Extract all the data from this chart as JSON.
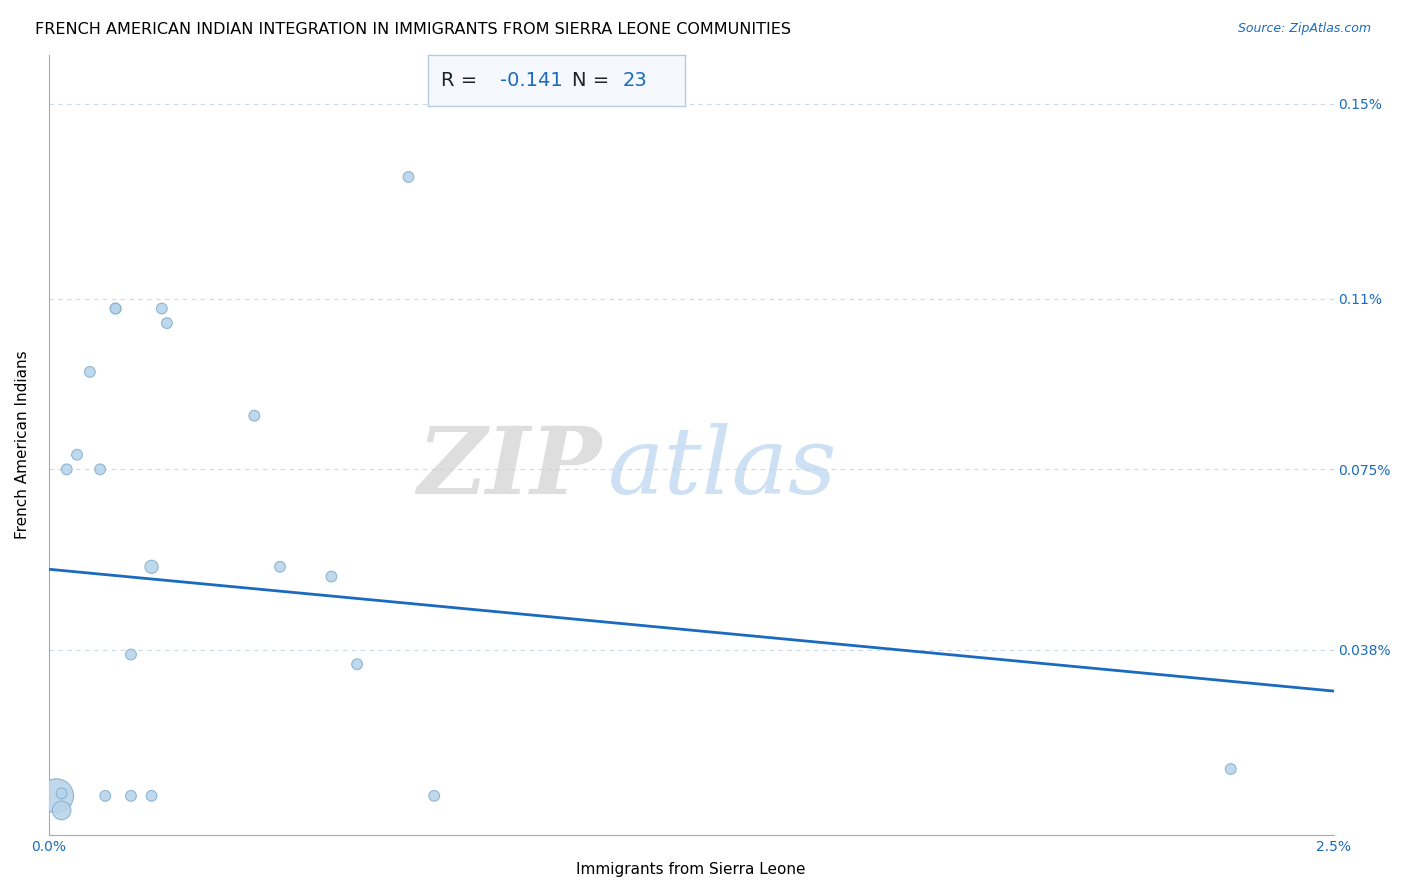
{
  "title": "FRENCH AMERICAN INDIAN INTEGRATION IN IMMIGRANTS FROM SIERRA LEONE COMMUNITIES",
  "source": "Source: ZipAtlas.com",
  "xlabel": "Immigrants from Sierra Leone",
  "ylabel": "French American Indians",
  "R": -0.141,
  "N": 23,
  "x_min": 0.0,
  "x_max": 0.025,
  "y_min": 0.0,
  "y_max": 0.0016,
  "x_ticks": [
    0.0,
    0.005,
    0.01,
    0.015,
    0.02,
    0.025
  ],
  "x_tick_labels": [
    "0.0%",
    "",
    "",
    "",
    "",
    "2.5%"
  ],
  "y_ticks": [
    0.0,
    0.00038,
    0.00075,
    0.0011,
    0.0015
  ],
  "y_tick_labels": [
    "",
    "0.038%",
    "0.075%",
    "0.11%",
    "0.15%"
  ],
  "watermark_zip": "ZIP",
  "watermark_atlas": "atlas",
  "scatter_x": [
    0.00015,
    0.00025,
    0.00025,
    0.00035,
    0.00055,
    0.0008,
    0.001,
    0.0011,
    0.0013,
    0.0013,
    0.0016,
    0.0016,
    0.002,
    0.002,
    0.0022,
    0.0023,
    0.004,
    0.0045,
    0.0055,
    0.006,
    0.007,
    0.0075,
    0.023
  ],
  "scatter_y": [
    8e-05,
    5e-05,
    8.5e-05,
    0.00075,
    0.00078,
    0.00095,
    0.00075,
    8e-05,
    0.00108,
    0.00108,
    8e-05,
    0.00037,
    0.00055,
    8e-05,
    0.00108,
    0.00105,
    0.00086,
    0.00055,
    0.00053,
    0.00035,
    0.00135,
    8e-05,
    0.000135
  ],
  "scatter_sizes": [
    600,
    180,
    60,
    60,
    60,
    60,
    60,
    60,
    60,
    60,
    60,
    60,
    90,
    60,
    60,
    60,
    60,
    60,
    60,
    60,
    60,
    60,
    60
  ],
  "dot_color": "#b8d4ea",
  "dot_edge_color": "#85b0d0",
  "line_color": "#1a6bbf",
  "regression_y_start": 0.000545,
  "regression_y_end": 0.000295,
  "grid_color": "#ccd9e8",
  "background_color": "#ffffff",
  "title_fontsize": 11.5,
  "axis_label_fontsize": 11,
  "tick_fontsize": 10,
  "annotation_box_color": "#f5f8ff",
  "annotation_border_color": "#b8cce0"
}
